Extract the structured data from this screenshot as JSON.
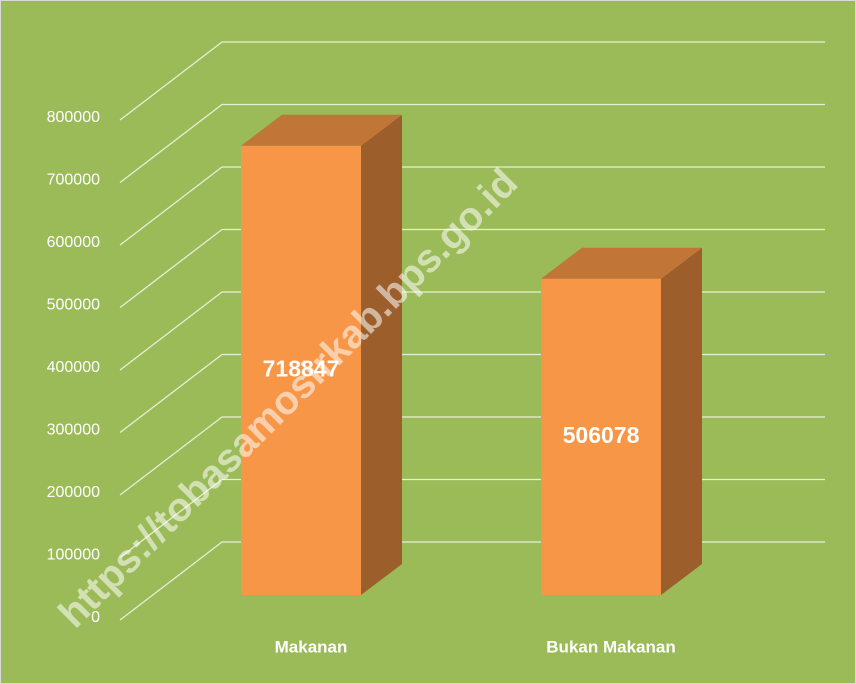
{
  "chart_data": {
    "type": "bar3d",
    "categories": [
      "Makanan",
      "Bukan Makanan"
    ],
    "values": [
      718847,
      506078
    ],
    "color": "#f79646",
    "ylim": [
      0,
      800000
    ],
    "yticks": [
      0,
      100000,
      200000,
      300000,
      400000,
      500000,
      600000,
      700000,
      800000
    ],
    "grid": true,
    "watermark": "https://tobasamosirkab.bps.go.id"
  }
}
